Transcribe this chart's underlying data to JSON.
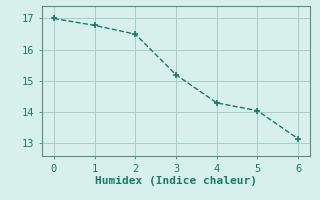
{
  "x": [
    0,
    1,
    2,
    3,
    4,
    5,
    6
  ],
  "y": [
    17.0,
    16.78,
    16.5,
    15.2,
    14.3,
    14.05,
    13.15
  ],
  "line_color": "#1a7a6a",
  "background_color": "#d8f0eb",
  "xlabel": "Humidex (Indice chaleur)",
  "xlim": [
    -0.3,
    6.3
  ],
  "ylim": [
    12.6,
    17.4
  ],
  "xticks": [
    0,
    1,
    2,
    3,
    4,
    5,
    6
  ],
  "yticks": [
    13,
    14,
    15,
    16,
    17
  ],
  "grid_color": "#a8cdc8",
  "spine_color": "#5a8a84",
  "xlabel_fontsize": 8,
  "tick_fontsize": 7.5
}
